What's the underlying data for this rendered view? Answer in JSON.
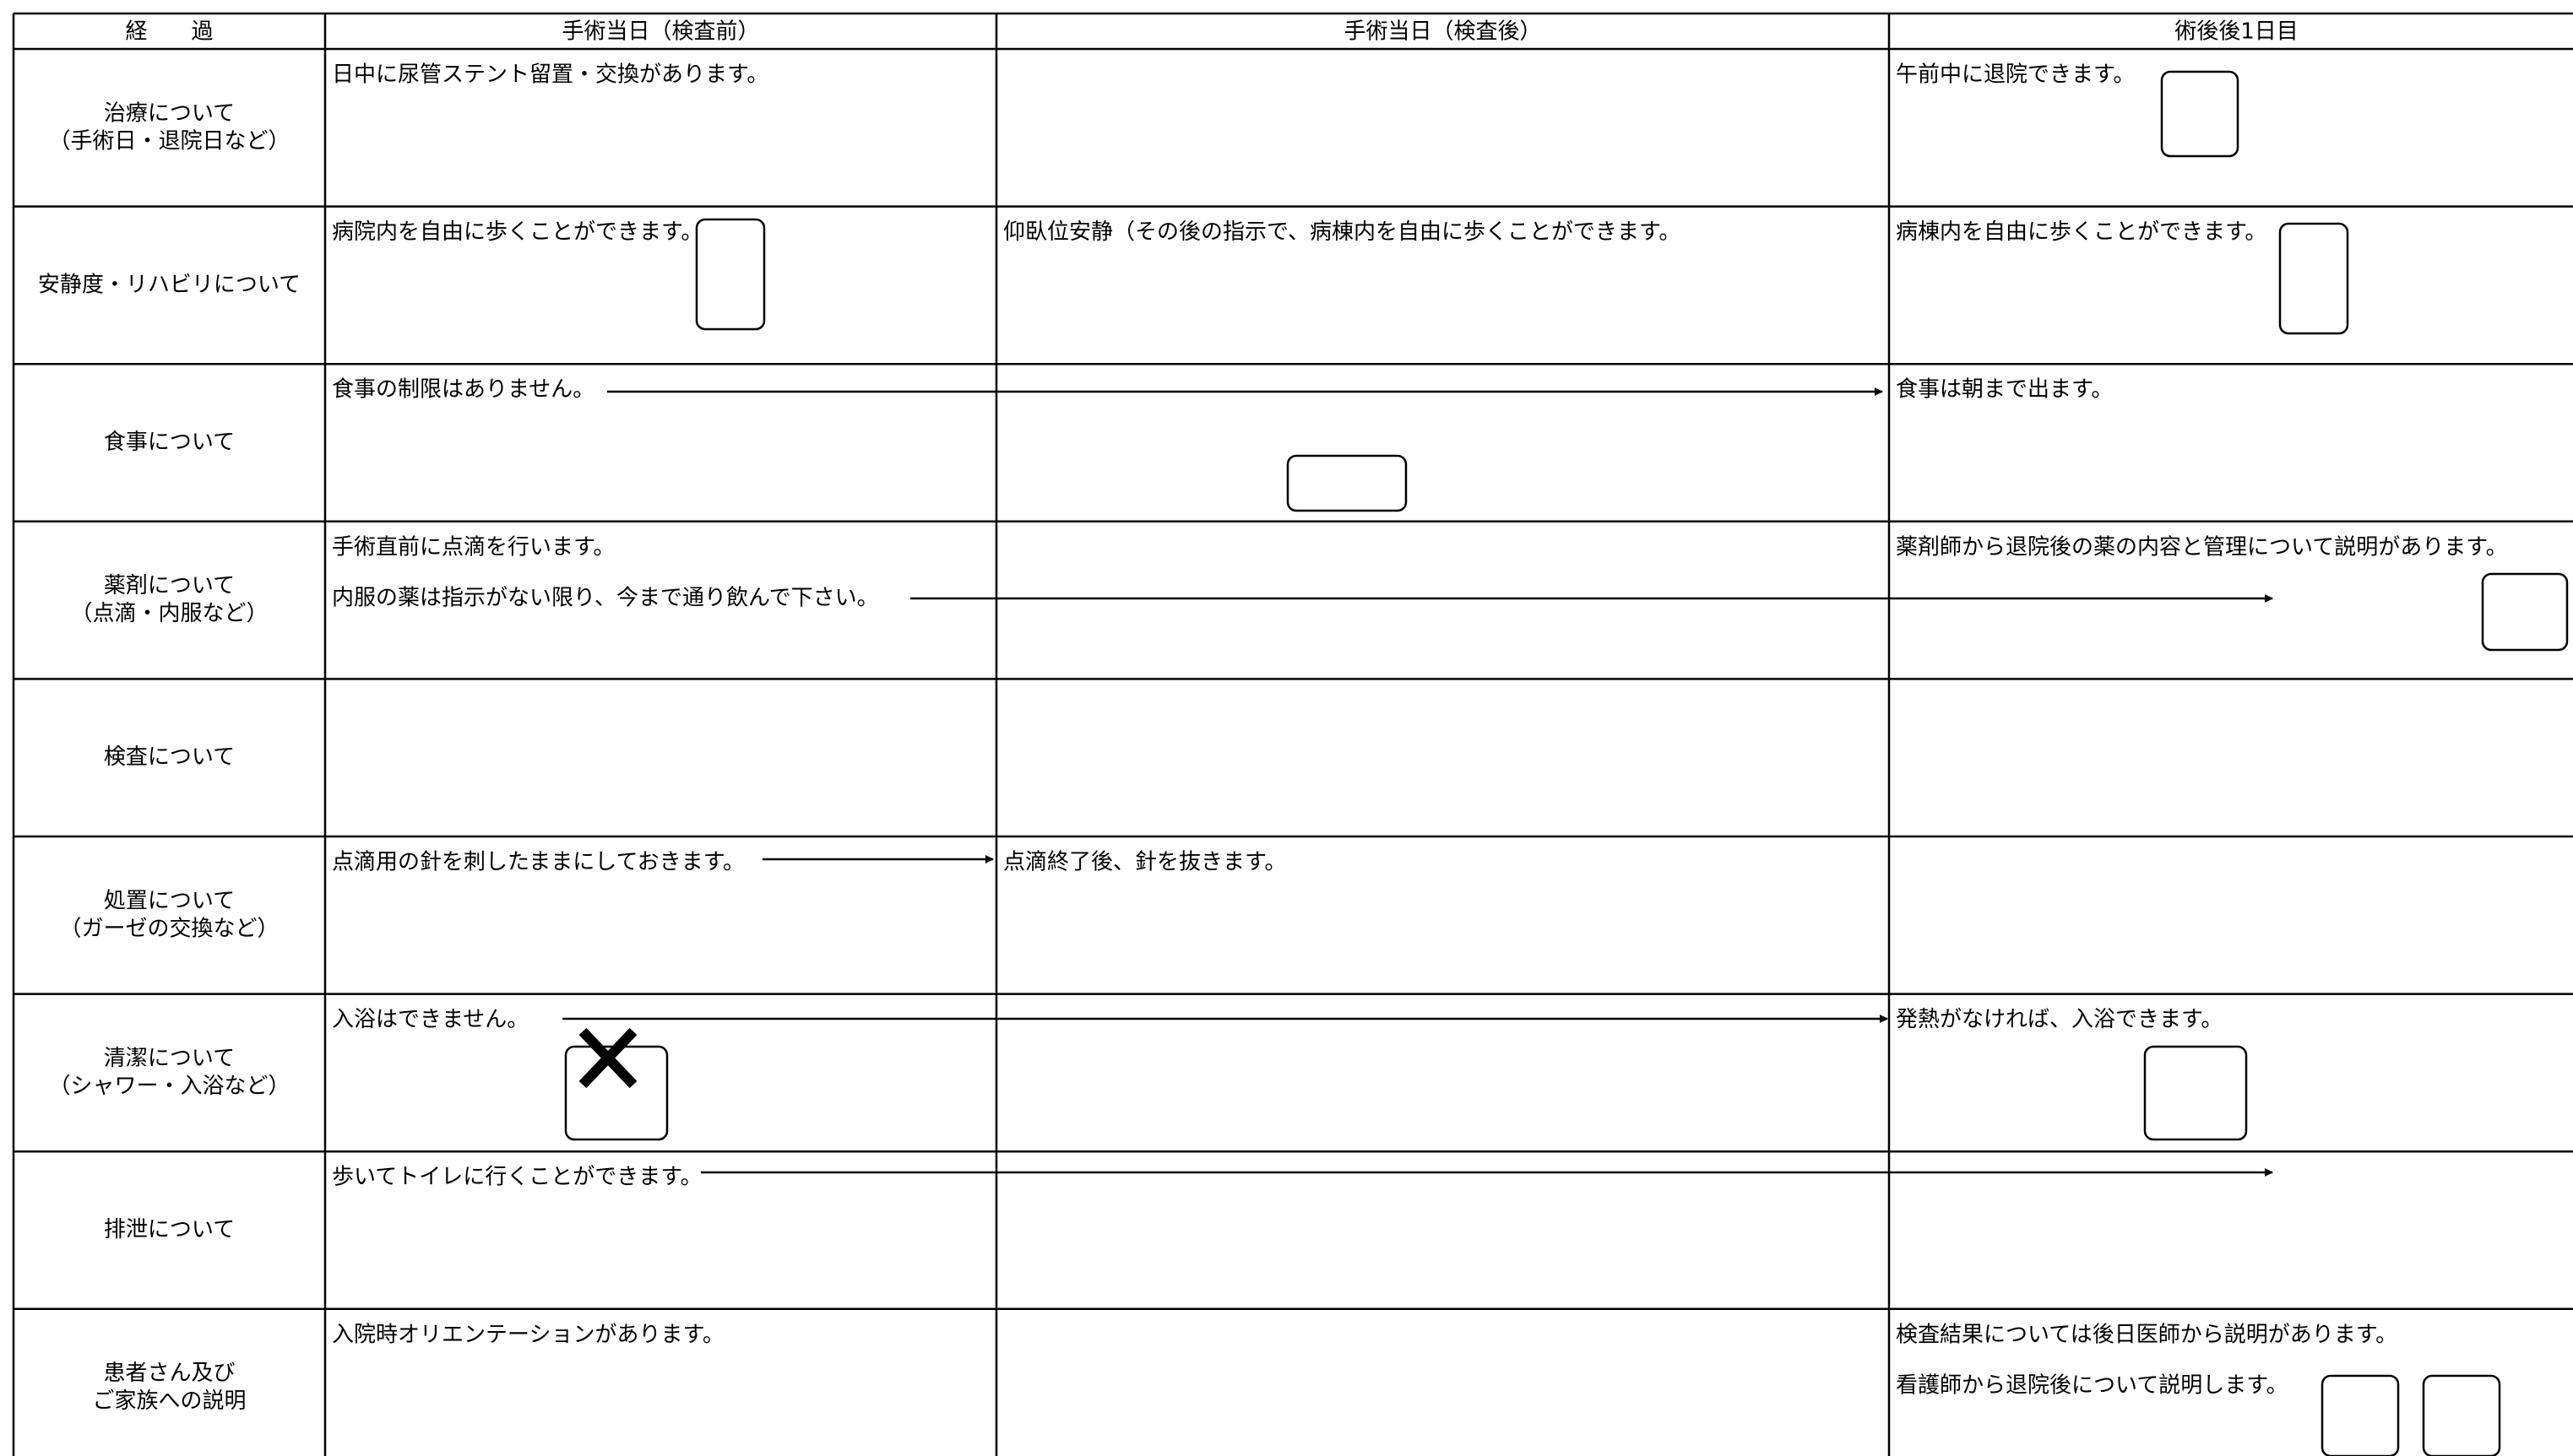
{
  "table": {
    "header": [
      "経　　過",
      "手術当日（検査前）",
      "手術当日（検査後）",
      "術後後1日目"
    ],
    "rows": [
      {
        "label": [
          "治療について",
          "（手術日・退院日など）"
        ],
        "cells": [
          [
            "日中に尿管ステント留置・交換があります。"
          ],
          [],
          [
            "午前中に退院できます。"
          ]
        ]
      },
      {
        "label": [
          "安静度・リハビリについて"
        ],
        "cells": [
          [
            "病院内を自由に歩くことができます。"
          ],
          [
            "仰臥位安静（その後の指示で、病棟内を自由に歩くことができます。"
          ],
          [
            "病棟内を自由に歩くことができます。"
          ]
        ]
      },
      {
        "label": [
          "食事について"
        ],
        "cells": [
          [
            "食事の制限はありません。"
          ],
          [],
          [
            "食事は朝まで出ます。"
          ]
        ]
      },
      {
        "label": [
          "薬剤について",
          "（点滴・内服など）"
        ],
        "cells": [
          [
            "手術直前に点滴を行います。",
            "内服の薬は指示がない限り、今まで通り飲んで下さい。"
          ],
          [],
          [
            "薬剤師から退院後の薬の内容と管理について説明があります。"
          ]
        ]
      },
      {
        "label": [
          "検査について"
        ],
        "cells": [
          [],
          [],
          []
        ]
      },
      {
        "label": [
          "処置について",
          "（ガーゼの交換など）"
        ],
        "cells": [
          [
            "点滴用の針を刺したままにしておきます。"
          ],
          [
            "点滴終了後、針を抜きます。"
          ],
          []
        ]
      },
      {
        "label": [
          "清潔について",
          "（シャワー・入浴など）"
        ],
        "cells": [
          [
            "入浴はできません。"
          ],
          [],
          [
            "発熱がなければ、入浴できます。"
          ]
        ]
      },
      {
        "label": [
          "排泄について"
        ],
        "cells": [
          [
            "歩いてトイレに行くことができます。"
          ],
          [],
          []
        ]
      },
      {
        "label": [
          "患者さん及び",
          "ご家族への説明"
        ],
        "cells": [
          [
            "入院時オリエンテーションがあります。"
          ],
          [],
          [
            "検査結果については後日医師から説明があります。",
            "看護師から退院後について説明します。"
          ]
        ]
      }
    ]
  }
}
